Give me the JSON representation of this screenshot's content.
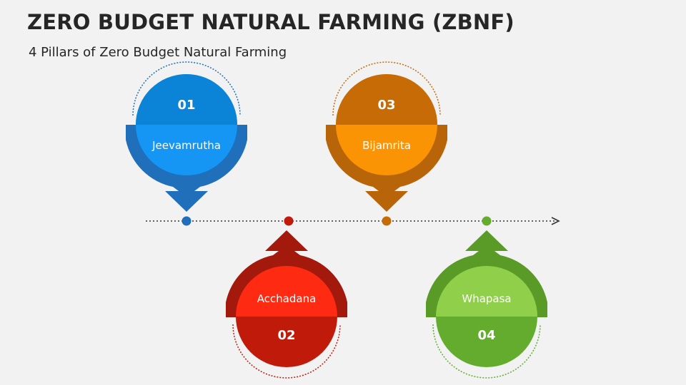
{
  "header": {
    "title": "ZERO BUDGET NATURAL FARMING (ZBNF)",
    "subtitle": "4 Pillars of Zero Budget Natural Farming"
  },
  "pillars": [
    {
      "number": "01",
      "label": "Jeevamrutha",
      "colors": {
        "dark": "#1f6fbb",
        "main": "#0b84d8",
        "light": "#1596f5",
        "dot": "#1f6fbb"
      }
    },
    {
      "number": "02",
      "label": "Acchadana",
      "colors": {
        "dark": "#a3190c",
        "main": "#c01b0a",
        "light": "#fe2a12",
        "dot": "#c01b0a"
      }
    },
    {
      "number": "03",
      "label": "Bijamrita",
      "colors": {
        "dark": "#b86408",
        "main": "#c66b05",
        "light": "#fa9404",
        "dot": "#c66b05"
      }
    },
    {
      "number": "04",
      "label": "Whapasa",
      "colors": {
        "dark": "#5a9b27",
        "main": "#64ac2d",
        "light": "#90cf4a",
        "dot": "#64ac2d"
      }
    }
  ]
}
